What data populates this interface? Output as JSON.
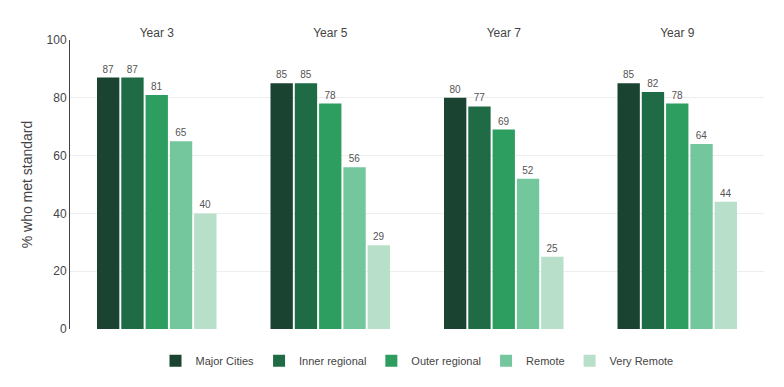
{
  "chart_data": {
    "type": "bar",
    "categories": [
      "Year 3",
      "Year 5",
      "Year 7",
      "Year 9"
    ],
    "series": [
      {
        "name": "Major Cities",
        "color": "#1b4332",
        "values": [
          87,
          85,
          80,
          85
        ]
      },
      {
        "name": "Inner regional",
        "color": "#1e6b45",
        "values": [
          87,
          85,
          77,
          82
        ]
      },
      {
        "name": "Outer regional",
        "color": "#2d9e5f",
        "values": [
          81,
          78,
          69,
          78
        ]
      },
      {
        "name": "Remote",
        "color": "#74c69d",
        "values": [
          65,
          56,
          52,
          64
        ]
      },
      {
        "name": "Very Remote",
        "color": "#b7dfc9",
        "values": [
          40,
          29,
          25,
          44
        ]
      }
    ],
    "ylabel": "% who met standard",
    "ylim": [
      0,
      100
    ],
    "yticks": [
      0,
      20,
      40,
      60,
      80,
      100
    ],
    "grid": true,
    "data_labels": true,
    "legend": "bottom"
  }
}
